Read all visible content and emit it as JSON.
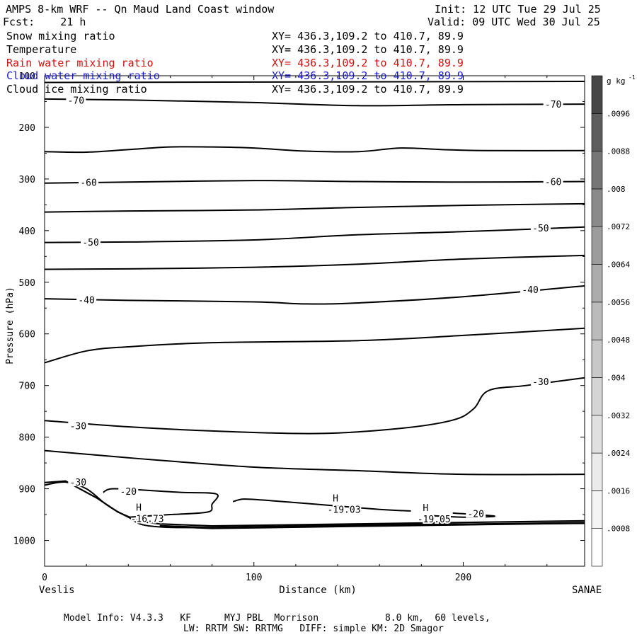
{
  "header": {
    "title": "AMPS 8-km WRF -- Qn Maud Land Coast window",
    "fcst": "Fcst:    21 h",
    "init": "Init: 12 UTC Tue 29 Jul 25",
    "valid": "Valid: 09 UTC Wed 30 Jul 25"
  },
  "legend": [
    {
      "name": "Snow mixing ratio",
      "xy": "XY= 436.3,109.2 to 410.7, 89.9",
      "color": "#000000"
    },
    {
      "name": "Temperature",
      "xy": "XY= 436.3,109.2 to 410.7, 89.9",
      "color": "#000000"
    },
    {
      "name": "Rain water mixing ratio",
      "xy": "XY= 436.3,109.2 to 410.7, 89.9",
      "color": "#d01010"
    },
    {
      "name": "Cloud water mixing ratio",
      "xy": "XY= 436.3,109.2 to 410.7, 89.9",
      "color": "#1a1ad0"
    },
    {
      "name": "Cloud ice mixing ratio",
      "xy": "XY= 436.3,109.2 to 410.7, 89.9",
      "color": "#000000"
    }
  ],
  "footer": {
    "line1": "Model Info: V4.3.3   KF      MYJ PBL  Morrison            8.0 km,  60 levels,",
    "line2": "LW: RRTM SW: RRTMG   DIFF: simple KM: 2D Smagor"
  },
  "chart_data": {
    "type": "line",
    "xlabel": "Distance (km)",
    "ylabel": "Pressure (hPa)",
    "xlim": [
      0,
      258
    ],
    "ylim": [
      1050,
      100
    ],
    "y_scale": "linear-reversed",
    "x_ticks": [
      0,
      100,
      200
    ],
    "y_ticks": [
      200,
      300,
      400,
      500,
      600,
      700,
      800,
      900,
      1000
    ],
    "y_tick_labels": [
      "200",
      "300",
      "400",
      "500",
      "600",
      "700",
      "800",
      "900",
      "1000"
    ],
    "clipped_top_label": "100",
    "x_end_labels": {
      "left": "Veslis",
      "right": "SANAE"
    },
    "colorbar": {
      "unit": "g kg",
      "unit_exp": "-1",
      "levels": [
        ".0008",
        ".0016",
        ".0024",
        ".0032",
        ".004",
        ".0048",
        ".0056",
        ".0064",
        ".0072",
        ".008",
        ".0088",
        ".0096"
      ],
      "colors": [
        "#ffffff",
        "#f4f4f4",
        "#ebebeb",
        "#e0e0e0",
        "#d5d5d5",
        "#c8c8c8",
        "#bbbbbb",
        "#acacac",
        "#9c9c9c",
        "#8a8a8a",
        "#767676",
        "#5e5e5e",
        "#464646"
      ]
    },
    "isotherms": [
      {
        "value": -75,
        "points": [
          [
            0,
            113
          ],
          [
            258,
            111
          ]
        ]
      },
      {
        "value": -70,
        "points": [
          [
            0,
            145
          ],
          [
            40,
            147
          ],
          [
            100,
            152
          ],
          [
            150,
            158
          ],
          [
            200,
            156
          ],
          [
            258,
            155
          ]
        ]
      },
      {
        "value": -65,
        "points": [
          [
            0,
            247
          ],
          [
            20,
            248
          ],
          [
            40,
            243
          ],
          [
            60,
            238
          ],
          [
            80,
            238
          ],
          [
            100,
            240
          ],
          [
            125,
            246
          ],
          [
            150,
            247
          ],
          [
            170,
            240
          ],
          [
            190,
            243
          ],
          [
            210,
            245
          ],
          [
            258,
            245
          ]
        ]
      },
      {
        "value": -60,
        "points": [
          [
            0,
            308
          ],
          [
            40,
            306
          ],
          [
            100,
            303
          ],
          [
            150,
            305
          ],
          [
            200,
            306
          ],
          [
            258,
            305
          ]
        ]
      },
      {
        "value": -55,
        "points": [
          [
            0,
            364
          ],
          [
            40,
            362
          ],
          [
            100,
            360
          ],
          [
            150,
            355
          ],
          [
            200,
            351
          ],
          [
            258,
            348
          ]
        ]
      },
      {
        "value": -50,
        "points": [
          [
            0,
            423
          ],
          [
            40,
            422
          ],
          [
            100,
            418
          ],
          [
            150,
            408
          ],
          [
            200,
            402
          ],
          [
            258,
            393
          ]
        ]
      },
      {
        "value": -45,
        "points": [
          [
            0,
            475
          ],
          [
            40,
            474
          ],
          [
            100,
            471
          ],
          [
            150,
            465
          ],
          [
            200,
            455
          ],
          [
            258,
            448
          ]
        ]
      },
      {
        "value": -40,
        "points": [
          [
            0,
            532
          ],
          [
            40,
            535
          ],
          [
            100,
            538
          ],
          [
            125,
            542
          ],
          [
            150,
            540
          ],
          [
            200,
            528
          ],
          [
            258,
            507
          ]
        ]
      },
      {
        "value": -35,
        "points": [
          [
            0,
            656
          ],
          [
            20,
            633
          ],
          [
            40,
            625
          ],
          [
            80,
            617
          ],
          [
            150,
            613
          ],
          [
            200,
            603
          ],
          [
            258,
            589
          ]
        ]
      },
      {
        "value": -30,
        "points": [
          [
            0,
            768
          ],
          [
            40,
            780
          ],
          [
            80,
            788
          ],
          [
            130,
            793
          ],
          [
            170,
            783
          ],
          [
            195,
            767
          ],
          [
            205,
            745
          ],
          [
            212,
            710
          ],
          [
            230,
            700
          ],
          [
            258,
            685
          ]
        ]
      },
      {
        "value": -25,
        "points": [
          [
            0,
            826
          ],
          [
            40,
            840
          ],
          [
            100,
            858
          ],
          [
            150,
            865
          ],
          [
            200,
            872
          ],
          [
            258,
            872
          ]
        ]
      },
      {
        "value": -30,
        "points": [
          [
            0,
            893
          ],
          [
            10,
            887
          ],
          [
            20,
            900
          ],
          [
            30,
            932
          ],
          [
            40,
            955
          ],
          [
            50,
            972
          ],
          [
            80,
            975
          ],
          [
            150,
            970
          ],
          [
            258,
            967
          ]
        ]
      },
      {
        "value": -20,
        "points": [
          [
            28,
            907
          ],
          [
            32,
            900
          ],
          [
            45,
            902
          ],
          [
            65,
            907
          ],
          [
            82,
            910
          ],
          [
            80,
            930
          ],
          [
            78,
            945
          ],
          [
            60,
            950
          ],
          [
            40,
            955
          ]
        ]
      },
      {
        "value": -20,
        "points": [
          [
            90,
            925
          ],
          [
            95,
            920
          ],
          [
            105,
            922
          ],
          [
            130,
            930
          ],
          [
            160,
            940
          ],
          [
            175,
            943
          ]
        ]
      },
      {
        "value": -20,
        "points": [
          [
            195,
            947
          ],
          [
            215,
            953
          ],
          [
            200,
            955
          ],
          [
            185,
            952
          ]
        ]
      }
    ],
    "contour_labels": [
      {
        "text": "-70",
        "x": 15,
        "y": 147
      },
      {
        "text": "-70",
        "x": 243,
        "y": 155
      },
      {
        "text": "-60",
        "x": 21,
        "y": 306
      },
      {
        "text": "-60",
        "x": 243,
        "y": 305
      },
      {
        "text": "-50",
        "x": 22,
        "y": 422
      },
      {
        "text": "-50",
        "x": 237,
        "y": 395
      },
      {
        "text": "-40",
        "x": 20,
        "y": 534
      },
      {
        "text": "-40",
        "x": 232,
        "y": 514
      },
      {
        "text": "-30",
        "x": 16,
        "y": 778
      },
      {
        "text": "-30",
        "x": 237,
        "y": 692
      },
      {
        "text": "-30",
        "x": 16,
        "y": 887
      },
      {
        "text": "-20",
        "x": 40,
        "y": 905
      },
      {
        "text": "-20",
        "x": 206,
        "y": 948
      }
    ],
    "markers": [
      {
        "type": "H",
        "label": "-16.73",
        "x": 45,
        "y": 945
      },
      {
        "type": "H",
        "label": "-19.03",
        "x": 139,
        "y": 927
      },
      {
        "type": "H",
        "label": "-19.05",
        "x": 182,
        "y": 946
      }
    ],
    "terrain": [
      [
        0,
        888
      ],
      [
        10,
        885
      ],
      [
        25,
        918
      ],
      [
        35,
        945
      ],
      [
        45,
        963
      ],
      [
        55,
        968
      ],
      [
        80,
        972
      ],
      [
        150,
        968
      ],
      [
        258,
        962
      ]
    ]
  }
}
